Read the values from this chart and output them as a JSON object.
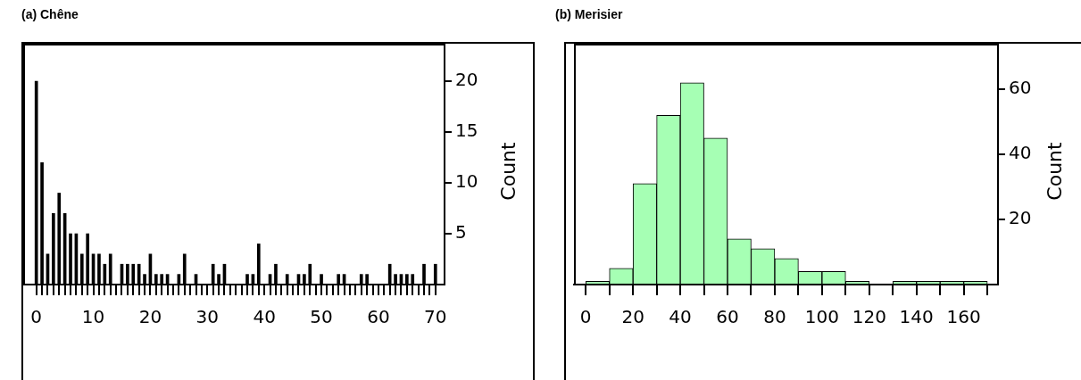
{
  "chart_data": [
    {
      "type": "bar",
      "title": "(a) Chêne",
      "ylabel": "Count",
      "x": [
        0,
        1,
        2,
        3,
        4,
        5,
        6,
        7,
        8,
        9,
        10,
        11,
        12,
        13,
        15,
        16,
        17,
        18,
        19,
        20,
        21,
        22,
        23,
        25,
        26,
        28,
        31,
        32,
        33,
        37,
        38,
        39,
        41,
        42,
        44,
        46,
        47,
        48,
        50,
        53,
        54,
        57,
        58,
        62,
        63,
        64,
        65,
        66,
        68,
        70
      ],
      "values": [
        20,
        12,
        3,
        7,
        9,
        7,
        5,
        5,
        3,
        5,
        3,
        3,
        2,
        3,
        2,
        2,
        2,
        2,
        1,
        3,
        1,
        1,
        1,
        1,
        3,
        1,
        2,
        1,
        2,
        1,
        1,
        4,
        1,
        2,
        1,
        1,
        1,
        2,
        1,
        1,
        1,
        1,
        1,
        2,
        1,
        1,
        1,
        1,
        2,
        2
      ],
      "color": "#000000",
      "xlim": [
        -2.3,
        71.6
      ],
      "ylim": [
        0,
        23.7
      ],
      "xticks": [
        0,
        {
          "value": 1,
          "label": null
        },
        {
          "value": 2,
          "label": null
        },
        {
          "value": 3,
          "label": null
        },
        {
          "value": 4,
          "label": null
        },
        {
          "value": 5,
          "label": null
        },
        {
          "value": 6,
          "label": null
        },
        {
          "value": 7,
          "label": null
        },
        {
          "value": 8,
          "label": null
        },
        {
          "value": 9,
          "label": null
        },
        10,
        {
          "value": 11,
          "label": null
        },
        {
          "value": 12,
          "label": null
        },
        {
          "value": 13,
          "label": null
        },
        {
          "value": 14,
          "label": null
        },
        {
          "value": 15,
          "label": null
        },
        {
          "value": 16,
          "label": null
        },
        {
          "value": 17,
          "label": null
        },
        {
          "value": 18,
          "label": null
        },
        {
          "value": 19,
          "label": null
        },
        20,
        {
          "value": 21,
          "label": null
        },
        {
          "value": 22,
          "label": null
        },
        {
          "value": 23,
          "label": null
        },
        {
          "value": 24,
          "label": null
        },
        {
          "value": 25,
          "label": null
        },
        {
          "value": 26,
          "label": null
        },
        {
          "value": 27,
          "label": null
        },
        {
          "value": 28,
          "label": null
        },
        {
          "value": 29,
          "label": null
        },
        30,
        {
          "value": 31,
          "label": null
        },
        {
          "value": 32,
          "label": null
        },
        {
          "value": 33,
          "label": null
        },
        {
          "value": 34,
          "label": null
        },
        {
          "value": 35,
          "label": null
        },
        {
          "value": 36,
          "label": null
        },
        {
          "value": 37,
          "label": null
        },
        {
          "value": 38,
          "label": null
        },
        {
          "value": 39,
          "label": null
        },
        40,
        {
          "value": 41,
          "label": null
        },
        {
          "value": 42,
          "label": null
        },
        {
          "value": 43,
          "label": null
        },
        {
          "value": 44,
          "label": null
        },
        {
          "value": 45,
          "label": null
        },
        {
          "value": 46,
          "label": null
        },
        {
          "value": 47,
          "label": null
        },
        {
          "value": 48,
          "label": null
        },
        {
          "value": 49,
          "label": null
        },
        50,
        {
          "value": 51,
          "label": null
        },
        {
          "value": 52,
          "label": null
        },
        {
          "value": 53,
          "label": null
        },
        {
          "value": 54,
          "label": null
        },
        {
          "value": 55,
          "label": null
        },
        {
          "value": 56,
          "label": null
        },
        {
          "value": 57,
          "label": null
        },
        {
          "value": 58,
          "label": null
        },
        {
          "value": 59,
          "label": null
        },
        60,
        {
          "value": 61,
          "label": null
        },
        {
          "value": 62,
          "label": null
        },
        {
          "value": 63,
          "label": null
        },
        {
          "value": 64,
          "label": null
        },
        {
          "value": 65,
          "label": null
        },
        {
          "value": 66,
          "label": null
        },
        {
          "value": 67,
          "label": null
        },
        {
          "value": 68,
          "label": null
        },
        {
          "value": 69,
          "label": null
        },
        70
      ],
      "yticks": [
        5,
        10,
        15,
        20
      ]
    },
    {
      "type": "histogram",
      "title": "(b) Merisier",
      "ylabel": "Count",
      "bins": [
        0,
        10,
        20,
        30,
        40,
        50,
        60,
        70,
        80,
        90,
        100,
        110,
        120,
        130,
        140,
        150,
        160,
        170
      ],
      "values": [
        1,
        5,
        31,
        52,
        62,
        45,
        14,
        11,
        8,
        4,
        4,
        1,
        0,
        1,
        1,
        1,
        1
      ],
      "color": "#a6ffb4",
      "xlim": [
        -5,
        174.5
      ],
      "ylim": [
        0,
        74
      ],
      "xticks": [
        0,
        {
          "value": 10,
          "label": null
        },
        20,
        {
          "value": 30,
          "label": null
        },
        40,
        {
          "value": 50,
          "label": null
        },
        60,
        {
          "value": 70,
          "label": null
        },
        80,
        {
          "value": 90,
          "label": null
        },
        100,
        {
          "value": 110,
          "label": null
        },
        120,
        {
          "value": 130,
          "label": null
        },
        140,
        {
          "value": 150,
          "label": null
        },
        160,
        {
          "value": 170,
          "label": null
        }
      ],
      "yticks": [
        20,
        40,
        60
      ]
    }
  ]
}
